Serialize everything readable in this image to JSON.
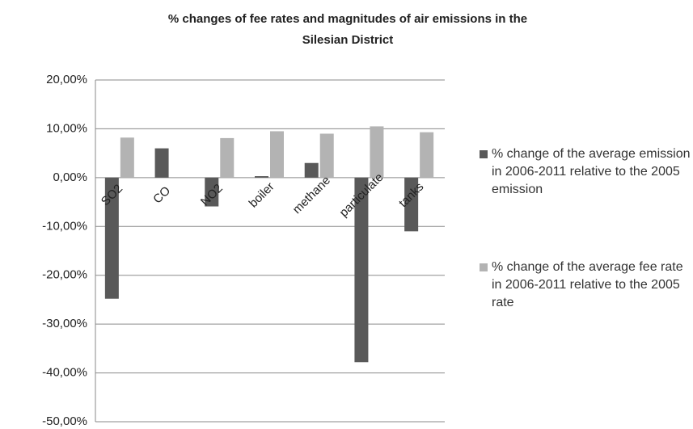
{
  "chart_data": {
    "type": "bar",
    "title": "% changes of fee rates and magnitudes of air emissions in the Silesian District",
    "categories": [
      "SO2",
      "CO",
      "NO2",
      "boiler",
      "methane",
      "particulate",
      "tanks"
    ],
    "series": [
      {
        "name": "% change of the average emission in 2006-2011 relative to the 2005 emission",
        "color": "#595959",
        "values": [
          -24.8,
          6.0,
          -5.9,
          0.3,
          3.0,
          -37.8,
          -11.0
        ]
      },
      {
        "name": "% change of the average fee rate in 2006-2011 relative to the 2005 rate",
        "color": "#b3b3b3",
        "values": [
          8.2,
          null,
          8.1,
          9.5,
          9.0,
          10.5,
          9.3
        ]
      }
    ],
    "ylim": [
      -50,
      20
    ],
    "yticks": [
      {
        "value": -50,
        "label": "-50,00%"
      },
      {
        "value": -40,
        "label": "-40,00%"
      },
      {
        "value": -30,
        "label": "-30,00%"
      },
      {
        "value": -20,
        "label": "-20,00%"
      },
      {
        "value": -10,
        "label": "-10,00%"
      },
      {
        "value": 0,
        "label": "0,00%"
      },
      {
        "value": 10,
        "label": "10,00%"
      },
      {
        "value": 20,
        "label": "20,00%"
      }
    ],
    "grid": true,
    "legend": "right"
  }
}
